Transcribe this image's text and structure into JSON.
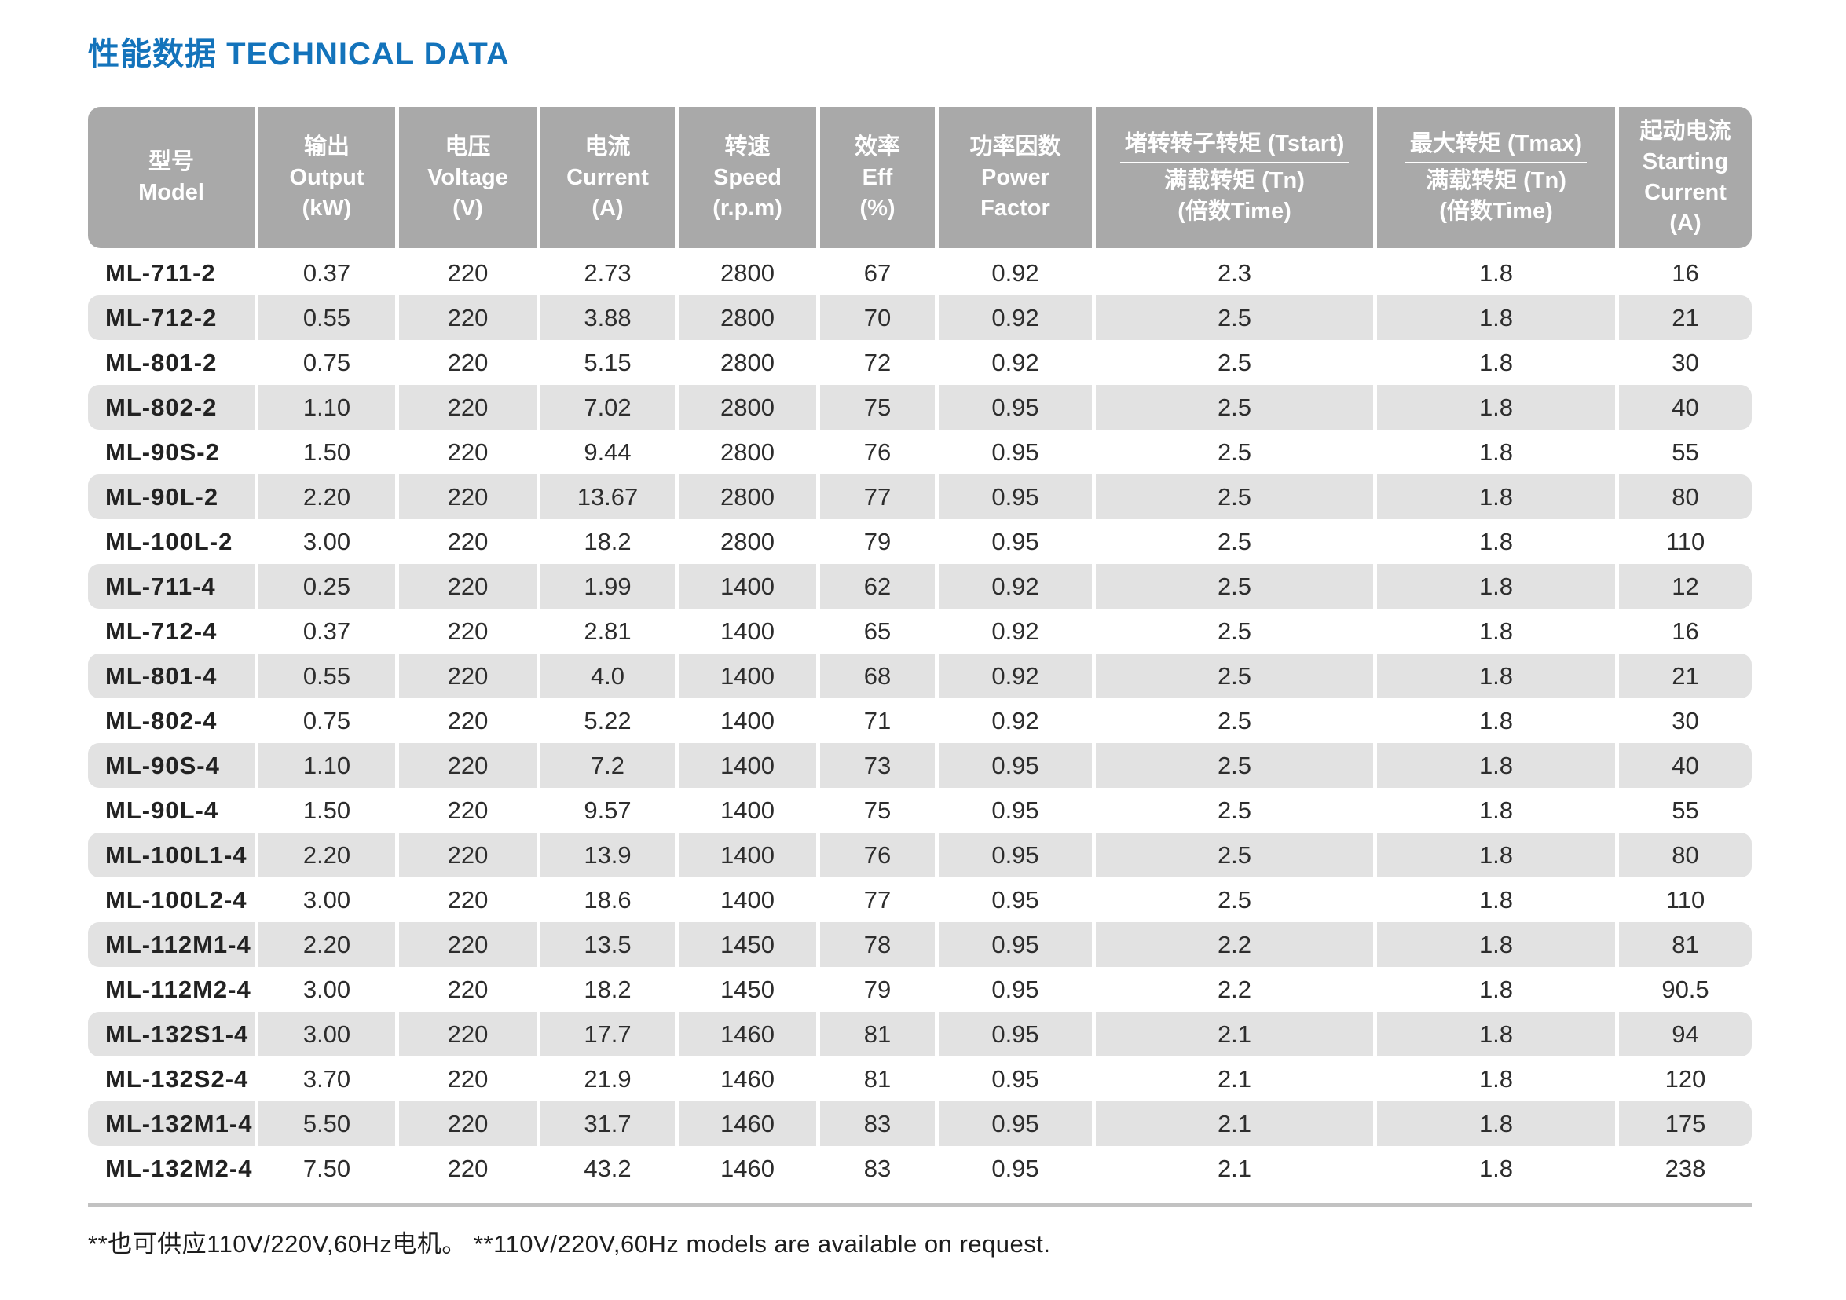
{
  "title": "性能数据 TECHNICAL DATA",
  "footnote": "**也可供应110V/220V,60Hz电机。 **110V/220V,60Hz models are available on request.",
  "table": {
    "columns": [
      {
        "id": "model",
        "lines": [
          "型号",
          "Model"
        ]
      },
      {
        "id": "output",
        "lines": [
          "输出",
          "Output",
          "(kW)"
        ]
      },
      {
        "id": "voltage",
        "lines": [
          "电压",
          "Voltage",
          "(V)"
        ]
      },
      {
        "id": "current",
        "lines": [
          "电流",
          "Current",
          "(A)"
        ]
      },
      {
        "id": "speed",
        "lines": [
          "转速",
          "Speed",
          "(r.p.m)"
        ]
      },
      {
        "id": "efficiency",
        "lines": [
          "效率",
          "Eff",
          "(%)"
        ]
      },
      {
        "id": "power-factor",
        "lines": [
          "功率因数",
          "Power",
          "Factor"
        ]
      },
      {
        "id": "tstart-ratio",
        "fraction": {
          "top": "堵转转子转矩 (Tstart)",
          "bottom": "满载转矩 (Tn)"
        },
        "lines": [
          "(倍数Time)"
        ]
      },
      {
        "id": "tmax-ratio",
        "fraction": {
          "top": "最大转矩 (Tmax)",
          "bottom": "满载转矩 (Tn)"
        },
        "lines": [
          "(倍数Time)"
        ]
      },
      {
        "id": "starting-current",
        "lines": [
          "起动电流",
          "Starting",
          "Current",
          "(A)"
        ]
      }
    ],
    "rows": [
      [
        "ML-711-2",
        "0.37",
        "220",
        "2.73",
        "2800",
        "67",
        "0.92",
        "2.3",
        "1.8",
        "16"
      ],
      [
        "ML-712-2",
        "0.55",
        "220",
        "3.88",
        "2800",
        "70",
        "0.92",
        "2.5",
        "1.8",
        "21"
      ],
      [
        "ML-801-2",
        "0.75",
        "220",
        "5.15",
        "2800",
        "72",
        "0.92",
        "2.5",
        "1.8",
        "30"
      ],
      [
        "ML-802-2",
        "1.10",
        "220",
        "7.02",
        "2800",
        "75",
        "0.95",
        "2.5",
        "1.8",
        "40"
      ],
      [
        "ML-90S-2",
        "1.50",
        "220",
        "9.44",
        "2800",
        "76",
        "0.95",
        "2.5",
        "1.8",
        "55"
      ],
      [
        "ML-90L-2",
        "2.20",
        "220",
        "13.67",
        "2800",
        "77",
        "0.95",
        "2.5",
        "1.8",
        "80"
      ],
      [
        "ML-100L-2",
        "3.00",
        "220",
        "18.2",
        "2800",
        "79",
        "0.95",
        "2.5",
        "1.8",
        "110"
      ],
      [
        "ML-711-4",
        "0.25",
        "220",
        "1.99",
        "1400",
        "62",
        "0.92",
        "2.5",
        "1.8",
        "12"
      ],
      [
        "ML-712-4",
        "0.37",
        "220",
        "2.81",
        "1400",
        "65",
        "0.92",
        "2.5",
        "1.8",
        "16"
      ],
      [
        "ML-801-4",
        "0.55",
        "220",
        "4.0",
        "1400",
        "68",
        "0.92",
        "2.5",
        "1.8",
        "21"
      ],
      [
        "ML-802-4",
        "0.75",
        "220",
        "5.22",
        "1400",
        "71",
        "0.92",
        "2.5",
        "1.8",
        "30"
      ],
      [
        "ML-90S-4",
        "1.10",
        "220",
        "7.2",
        "1400",
        "73",
        "0.95",
        "2.5",
        "1.8",
        "40"
      ],
      [
        "ML-90L-4",
        "1.50",
        "220",
        "9.57",
        "1400",
        "75",
        "0.95",
        "2.5",
        "1.8",
        "55"
      ],
      [
        "ML-100L1-4",
        "2.20",
        "220",
        "13.9",
        "1400",
        "76",
        "0.95",
        "2.5",
        "1.8",
        "80"
      ],
      [
        "ML-100L2-4",
        "3.00",
        "220",
        "18.6",
        "1400",
        "77",
        "0.95",
        "2.5",
        "1.8",
        "110"
      ],
      [
        "ML-112M1-4",
        "2.20",
        "220",
        "13.5",
        "1450",
        "78",
        "0.95",
        "2.2",
        "1.8",
        "81"
      ],
      [
        "ML-112M2-4",
        "3.00",
        "220",
        "18.2",
        "1450",
        "79",
        "0.95",
        "2.2",
        "1.8",
        "90.5"
      ],
      [
        "ML-132S1-4",
        "3.00",
        "220",
        "17.7",
        "1460",
        "81",
        "0.95",
        "2.1",
        "1.8",
        "94"
      ],
      [
        "ML-132S2-4",
        "3.70",
        "220",
        "21.9",
        "1460",
        "81",
        "0.95",
        "2.1",
        "1.8",
        "120"
      ],
      [
        "ML-132M1-4",
        "5.50",
        "220",
        "31.7",
        "1460",
        "83",
        "0.95",
        "2.1",
        "1.8",
        "175"
      ],
      [
        "ML-132M2-4",
        "7.50",
        "220",
        "43.2",
        "1460",
        "83",
        "0.95",
        "2.1",
        "1.8",
        "238"
      ]
    ]
  },
  "colors": {
    "title_blue": "#1373bb",
    "header_gray": "#a9a9a9",
    "stripe_gray": "#e2e2e2",
    "text_dark": "#2d2d2d"
  }
}
